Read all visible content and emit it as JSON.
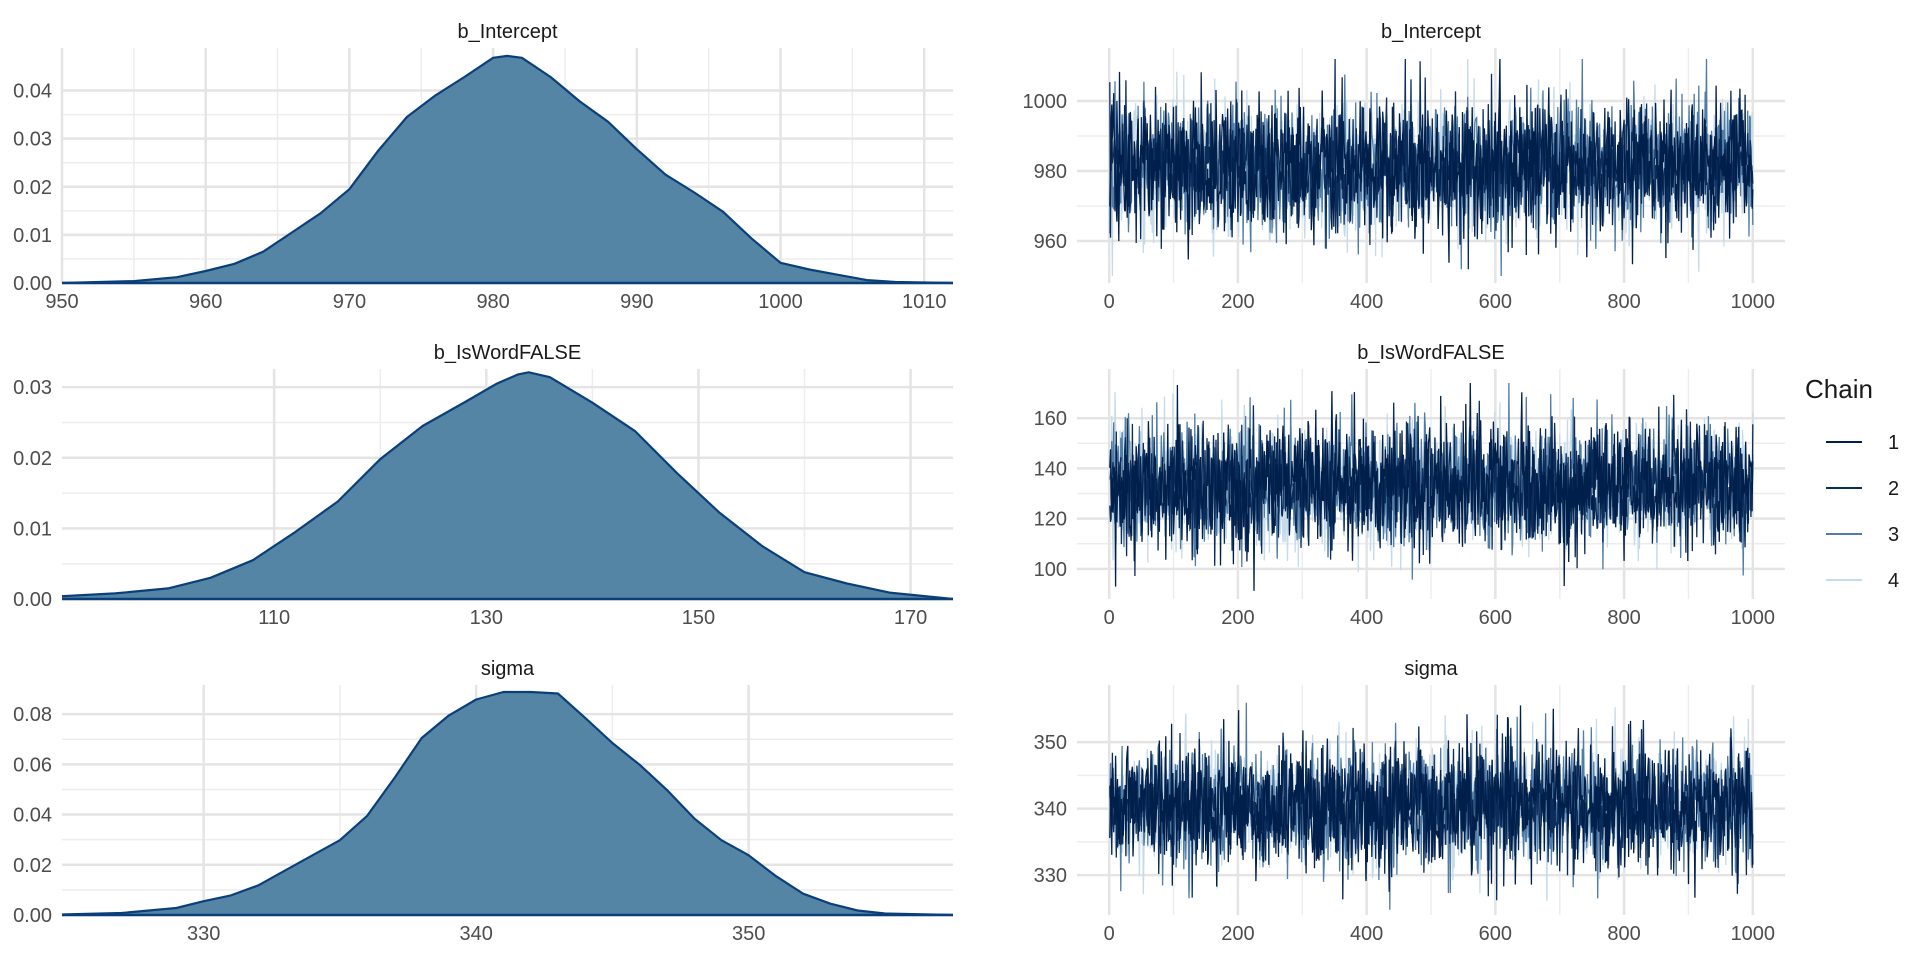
{
  "legend": {
    "title": "Chain",
    "items": [
      {
        "label": "1",
        "color": "#011f4b"
      },
      {
        "label": "2",
        "color": "#0b2d5c"
      },
      {
        "label": "3",
        "color": "#4f7da6"
      },
      {
        "label": "4",
        "color": "#c6dbea"
      }
    ]
  },
  "chart_data": [
    {
      "type": "area",
      "title": "b_Intercept",
      "xlabel": "",
      "ylabel": "",
      "xlim": [
        950,
        1012
      ],
      "ylim": [
        0,
        0.048
      ],
      "xticks": [
        950,
        960,
        970,
        980,
        990,
        1000,
        1010
      ],
      "xtick_labels": [
        "950",
        "960",
        "970",
        "980",
        "990",
        "1000",
        "1010"
      ],
      "yticks": [
        0,
        0.01,
        0.02,
        0.03,
        0.04
      ],
      "ytick_labels": [
        "0.00",
        "0.01",
        "0.02",
        "0.03",
        "0.04"
      ],
      "fill": "#5585a4",
      "stroke": "#0b3f7a",
      "grid": true,
      "x": [
        950,
        955,
        958,
        960,
        962,
        964,
        966,
        968,
        970,
        972,
        974,
        976,
        978,
        980,
        981,
        982,
        984,
        986,
        988,
        990,
        992,
        994,
        996,
        998,
        1000,
        1002,
        1004,
        1006,
        1008,
        1012
      ],
      "y": [
        0,
        0.0004,
        0.0012,
        0.0025,
        0.004,
        0.0065,
        0.0105,
        0.0145,
        0.0195,
        0.0275,
        0.0345,
        0.039,
        0.0428,
        0.0468,
        0.0472,
        0.0468,
        0.0428,
        0.0378,
        0.0335,
        0.0278,
        0.0225,
        0.0188,
        0.0148,
        0.0092,
        0.0042,
        0.0028,
        0.0017,
        0.0006,
        0.0002,
        0
      ]
    },
    {
      "type": "line",
      "title": "b_Intercept",
      "xlabel": "",
      "ylabel": "",
      "xlim": [
        -50,
        1050
      ],
      "ylim": [
        948,
        1014
      ],
      "xticks": [
        0,
        200,
        400,
        600,
        800,
        1000
      ],
      "xtick_labels": [
        "0",
        "200",
        "400",
        "600",
        "800",
        "1000"
      ],
      "yticks": [
        960,
        980,
        1000
      ],
      "ytick_labels": [
        "960",
        "980",
        "1000"
      ],
      "grid": true,
      "trace": {
        "n": 1000,
        "mean": 981,
        "sd": 9.5,
        "min": 950,
        "max": 1012
      }
    },
    {
      "type": "area",
      "title": "b_IsWordFALSE",
      "xlabel": "",
      "ylabel": "",
      "xlim": [
        90,
        174
      ],
      "ylim": [
        0,
        0.032
      ],
      "xticks": [
        110,
        130,
        150,
        170
      ],
      "xtick_labels": [
        "110",
        "130",
        "150",
        "170"
      ],
      "yticks": [
        0,
        0.01,
        0.02,
        0.03
      ],
      "ytick_labels": [
        "0.00",
        "0.01",
        "0.02",
        "0.03"
      ],
      "fill": "#5585a4",
      "stroke": "#0b3f7a",
      "grid": true,
      "x": [
        90,
        95,
        100,
        104,
        108,
        112,
        116,
        120,
        124,
        128,
        131,
        133,
        134,
        136,
        140,
        144,
        148,
        152,
        156,
        160,
        164,
        168,
        172,
        174
      ],
      "y": [
        0.0004,
        0.0008,
        0.0015,
        0.003,
        0.0055,
        0.0095,
        0.0138,
        0.0198,
        0.0245,
        0.0279,
        0.0305,
        0.0318,
        0.0321,
        0.0314,
        0.0278,
        0.0238,
        0.0178,
        0.0122,
        0.0075,
        0.0038,
        0.0022,
        0.0009,
        0.0003,
        0
      ]
    },
    {
      "type": "line",
      "title": "b_IsWordFALSE",
      "xlabel": "",
      "ylabel": "",
      "xlim": [
        -50,
        1050
      ],
      "ylim": [
        88,
        178
      ],
      "xticks": [
        0,
        200,
        400,
        600,
        800,
        1000
      ],
      "xtick_labels": [
        "0",
        "200",
        "400",
        "600",
        "800",
        "1000"
      ],
      "yticks": [
        100,
        120,
        140,
        160
      ],
      "ytick_labels": [
        "100",
        "120",
        "140",
        "160"
      ],
      "grid": true,
      "trace": {
        "n": 1000,
        "mean": 133,
        "sd": 12.5,
        "min": 90,
        "max": 174
      }
    },
    {
      "type": "area",
      "title": "sigma",
      "xlabel": "",
      "ylabel": "",
      "xlim": [
        324.8,
        357.5
      ],
      "ylim": [
        0,
        0.09
      ],
      "xticks": [
        330,
        340,
        350
      ],
      "xtick_labels": [
        "330",
        "340",
        "350"
      ],
      "yticks": [
        0,
        0.02,
        0.04,
        0.06,
        0.08
      ],
      "ytick_labels": [
        "0.00",
        "0.02",
        "0.04",
        "0.06",
        "0.08"
      ],
      "fill": "#5585a4",
      "stroke": "#0b3f7a",
      "grid": true,
      "x": [
        324.8,
        327,
        329,
        330,
        331,
        332,
        333,
        334,
        335,
        336,
        337,
        338,
        339,
        340,
        341,
        342,
        343,
        344,
        345,
        346,
        347,
        348,
        349,
        350,
        351,
        352,
        353,
        354,
        355,
        357.5
      ],
      "y": [
        0.0002,
        0.0008,
        0.0028,
        0.0055,
        0.0078,
        0.0118,
        0.0178,
        0.0238,
        0.0298,
        0.0395,
        0.0545,
        0.0705,
        0.0795,
        0.0858,
        0.0888,
        0.0888,
        0.0882,
        0.0785,
        0.0685,
        0.0598,
        0.0498,
        0.0385,
        0.0298,
        0.0238,
        0.0155,
        0.0085,
        0.0045,
        0.0018,
        0.0006,
        0
      ]
    },
    {
      "type": "line",
      "title": "sigma",
      "xlabel": "",
      "ylabel": "",
      "xlim": [
        -50,
        1050
      ],
      "ylim": [
        324,
        358
      ],
      "xticks": [
        0,
        200,
        400,
        600,
        800,
        1000
      ],
      "xtick_labels": [
        "0",
        "200",
        "400",
        "600",
        "800",
        "1000"
      ],
      "yticks": [
        330,
        340,
        350
      ],
      "ytick_labels": [
        "330",
        "340",
        "350"
      ],
      "grid": true,
      "trace": {
        "n": 1000,
        "mean": 340.5,
        "sd": 4.6,
        "min": 324.8,
        "max": 357.5
      }
    }
  ]
}
